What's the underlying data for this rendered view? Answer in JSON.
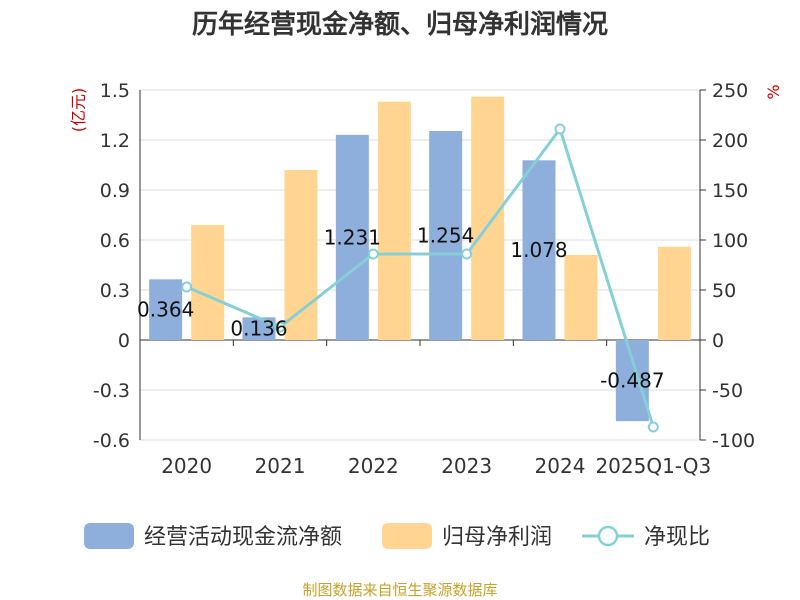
{
  "chart_data": {
    "type": "bar",
    "title": "历年经营现金净额、归母净利润情况",
    "y_left_label": "(亿元)",
    "y_right_label": "%",
    "y_left_range": [
      -0.6,
      1.5
    ],
    "y_left_ticks": [
      "-0.6",
      "-0.3",
      "0",
      "0.3",
      "0.6",
      "0.9",
      "1.2",
      "1.5"
    ],
    "y_right_range": [
      -100,
      250
    ],
    "y_right_ticks": [
      "-100",
      "-50",
      "0",
      "50",
      "100",
      "150",
      "200",
      "250"
    ],
    "categories": [
      "2020",
      "2021",
      "2022",
      "2023",
      "2024",
      "2025Q1-Q3"
    ],
    "grid": true,
    "legend_position": "bottom",
    "series": [
      {
        "name": "经营活动现金流净额",
        "type": "bar",
        "axis": "left",
        "color": "#8eaedb",
        "values": [
          0.364,
          0.136,
          1.231,
          1.254,
          1.078,
          -0.487
        ],
        "labels": [
          "0.364",
          "0.136",
          "1.231",
          "1.254",
          "1.078",
          "-0.487"
        ]
      },
      {
        "name": "归母净利润",
        "type": "bar",
        "axis": "left",
        "color": "#ffd591",
        "values": [
          0.69,
          1.02,
          1.43,
          1.46,
          0.51,
          0.56
        ]
      },
      {
        "name": "净现比",
        "type": "line",
        "axis": "right",
        "color": "#85d0d6",
        "values": [
          53,
          13,
          86,
          86,
          211,
          -87
        ]
      }
    ]
  },
  "source": "制图数据来自恒生聚源数据库"
}
